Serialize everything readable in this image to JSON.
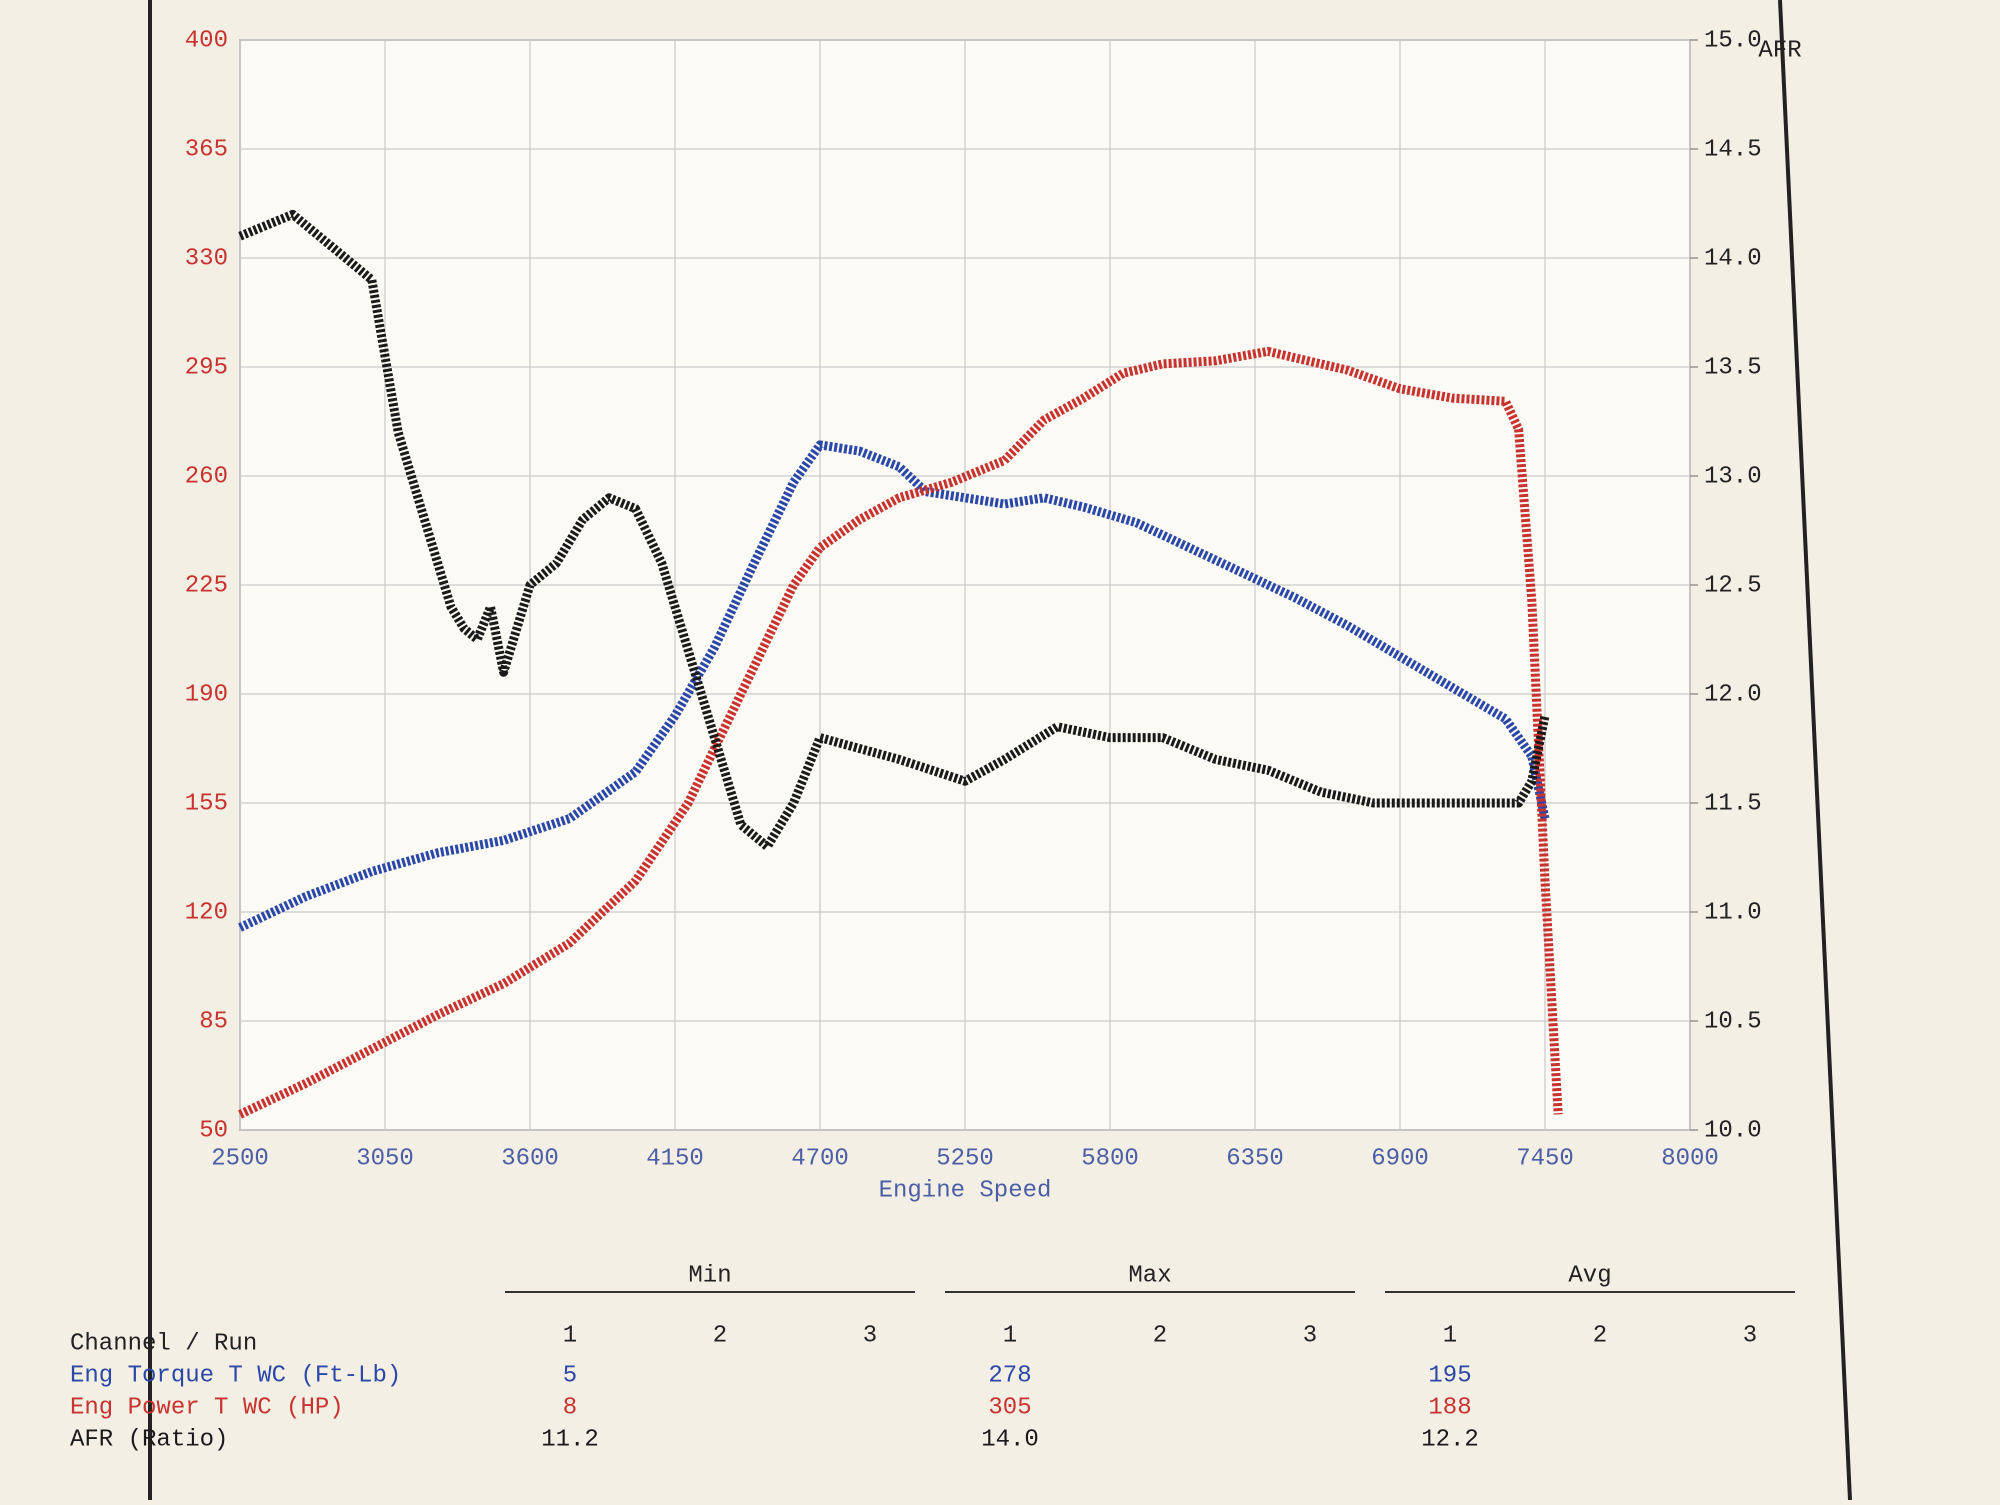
{
  "chart_data": {
    "type": "line",
    "x_label": "Engine Speed",
    "y2_label": "AFR",
    "xlim": [
      2500,
      8000
    ],
    "xticks": [
      2500,
      3050,
      3600,
      4150,
      4700,
      5250,
      5800,
      6350,
      6900,
      7450,
      8000
    ],
    "ylim": [
      50,
      400
    ],
    "yticks": [
      50,
      85,
      120,
      155,
      190,
      225,
      260,
      295,
      330,
      365,
      400
    ],
    "y2lim": [
      10,
      15
    ],
    "y2ticks": [
      {
        "value": 10,
        "label": "10.0"
      },
      10.5,
      {
        "value": 11,
        "label": "11.0"
      },
      11.5,
      {
        "value": 12,
        "label": "12.0"
      },
      12.5,
      {
        "value": 13,
        "label": "13.0"
      },
      13.5,
      {
        "value": 14,
        "label": "14.0"
      },
      14.5,
      {
        "value": 15,
        "label": "15.0"
      }
    ],
    "grid": true,
    "series": [
      {
        "name": "Eng Torque T WC (Ft-Lb)",
        "color": "#2b48a8",
        "x": [
          2500,
          2750,
          3000,
          3250,
          3500,
          3750,
          4000,
          4150,
          4300,
          4450,
          4600,
          4700,
          4850,
          5000,
          5100,
          5250,
          5400,
          5550,
          5700,
          5900,
          6100,
          6300,
          6500,
          6700,
          6900,
          7100,
          7300,
          7400,
          7450
        ],
        "values": [
          115,
          125,
          133,
          139,
          143,
          150,
          165,
          183,
          205,
          232,
          258,
          270,
          268,
          263,
          255,
          253,
          251,
          253,
          250,
          245,
          237,
          229,
          221,
          212,
          202,
          192,
          182,
          170,
          150
        ]
      },
      {
        "name": "Eng Power T WC (HP)",
        "color": "#c8322f",
        "x": [
          2500,
          2750,
          3000,
          3250,
          3500,
          3750,
          4000,
          4200,
          4400,
          4600,
          4700,
          4850,
          5000,
          5200,
          5400,
          5550,
          5700,
          5850,
          6000,
          6200,
          6400,
          6500,
          6700,
          6900,
          7100,
          7300,
          7350,
          7400,
          7450,
          7500
        ],
        "values": [
          55,
          65,
          76,
          87,
          97,
          110,
          130,
          155,
          190,
          225,
          237,
          246,
          253,
          258,
          265,
          278,
          285,
          293,
          296,
          297,
          300,
          298,
          294,
          288,
          285,
          284,
          275,
          220,
          130,
          55
        ]
      },
      {
        "name": "AFR (Ratio)",
        "color": "#1a1a1a",
        "axis": "y2",
        "x": [
          2500,
          2700,
          2900,
          3000,
          3100,
          3200,
          3300,
          3350,
          3400,
          3450,
          3500,
          3600,
          3700,
          3800,
          3900,
          4000,
          4100,
          4200,
          4300,
          4400,
          4500,
          4600,
          4700,
          4850,
          5000,
          5250,
          5400,
          5600,
          5800,
          6000,
          6200,
          6400,
          6600,
          6800,
          7000,
          7200,
          7350,
          7400,
          7450
        ],
        "values": [
          14.1,
          14.2,
          14.0,
          13.9,
          13.2,
          12.8,
          12.4,
          12.3,
          12.25,
          12.4,
          12.1,
          12.5,
          12.6,
          12.8,
          12.9,
          12.85,
          12.6,
          12.2,
          11.8,
          11.4,
          11.3,
          11.5,
          11.8,
          11.75,
          11.7,
          11.6,
          11.7,
          11.85,
          11.8,
          11.8,
          11.7,
          11.65,
          11.55,
          11.5,
          11.5,
          11.5,
          11.5,
          11.6,
          11.9
        ]
      }
    ],
    "summary": {
      "groups": [
        "Min",
        "Max",
        "Avg"
      ],
      "header": "Channel / Run",
      "runs": [
        "1",
        "2",
        "3"
      ],
      "rows": [
        [
          "5",
          "278",
          "195"
        ],
        [
          "8",
          "305",
          "188"
        ],
        [
          "11.2",
          "14.0",
          "12.2"
        ]
      ]
    }
  }
}
